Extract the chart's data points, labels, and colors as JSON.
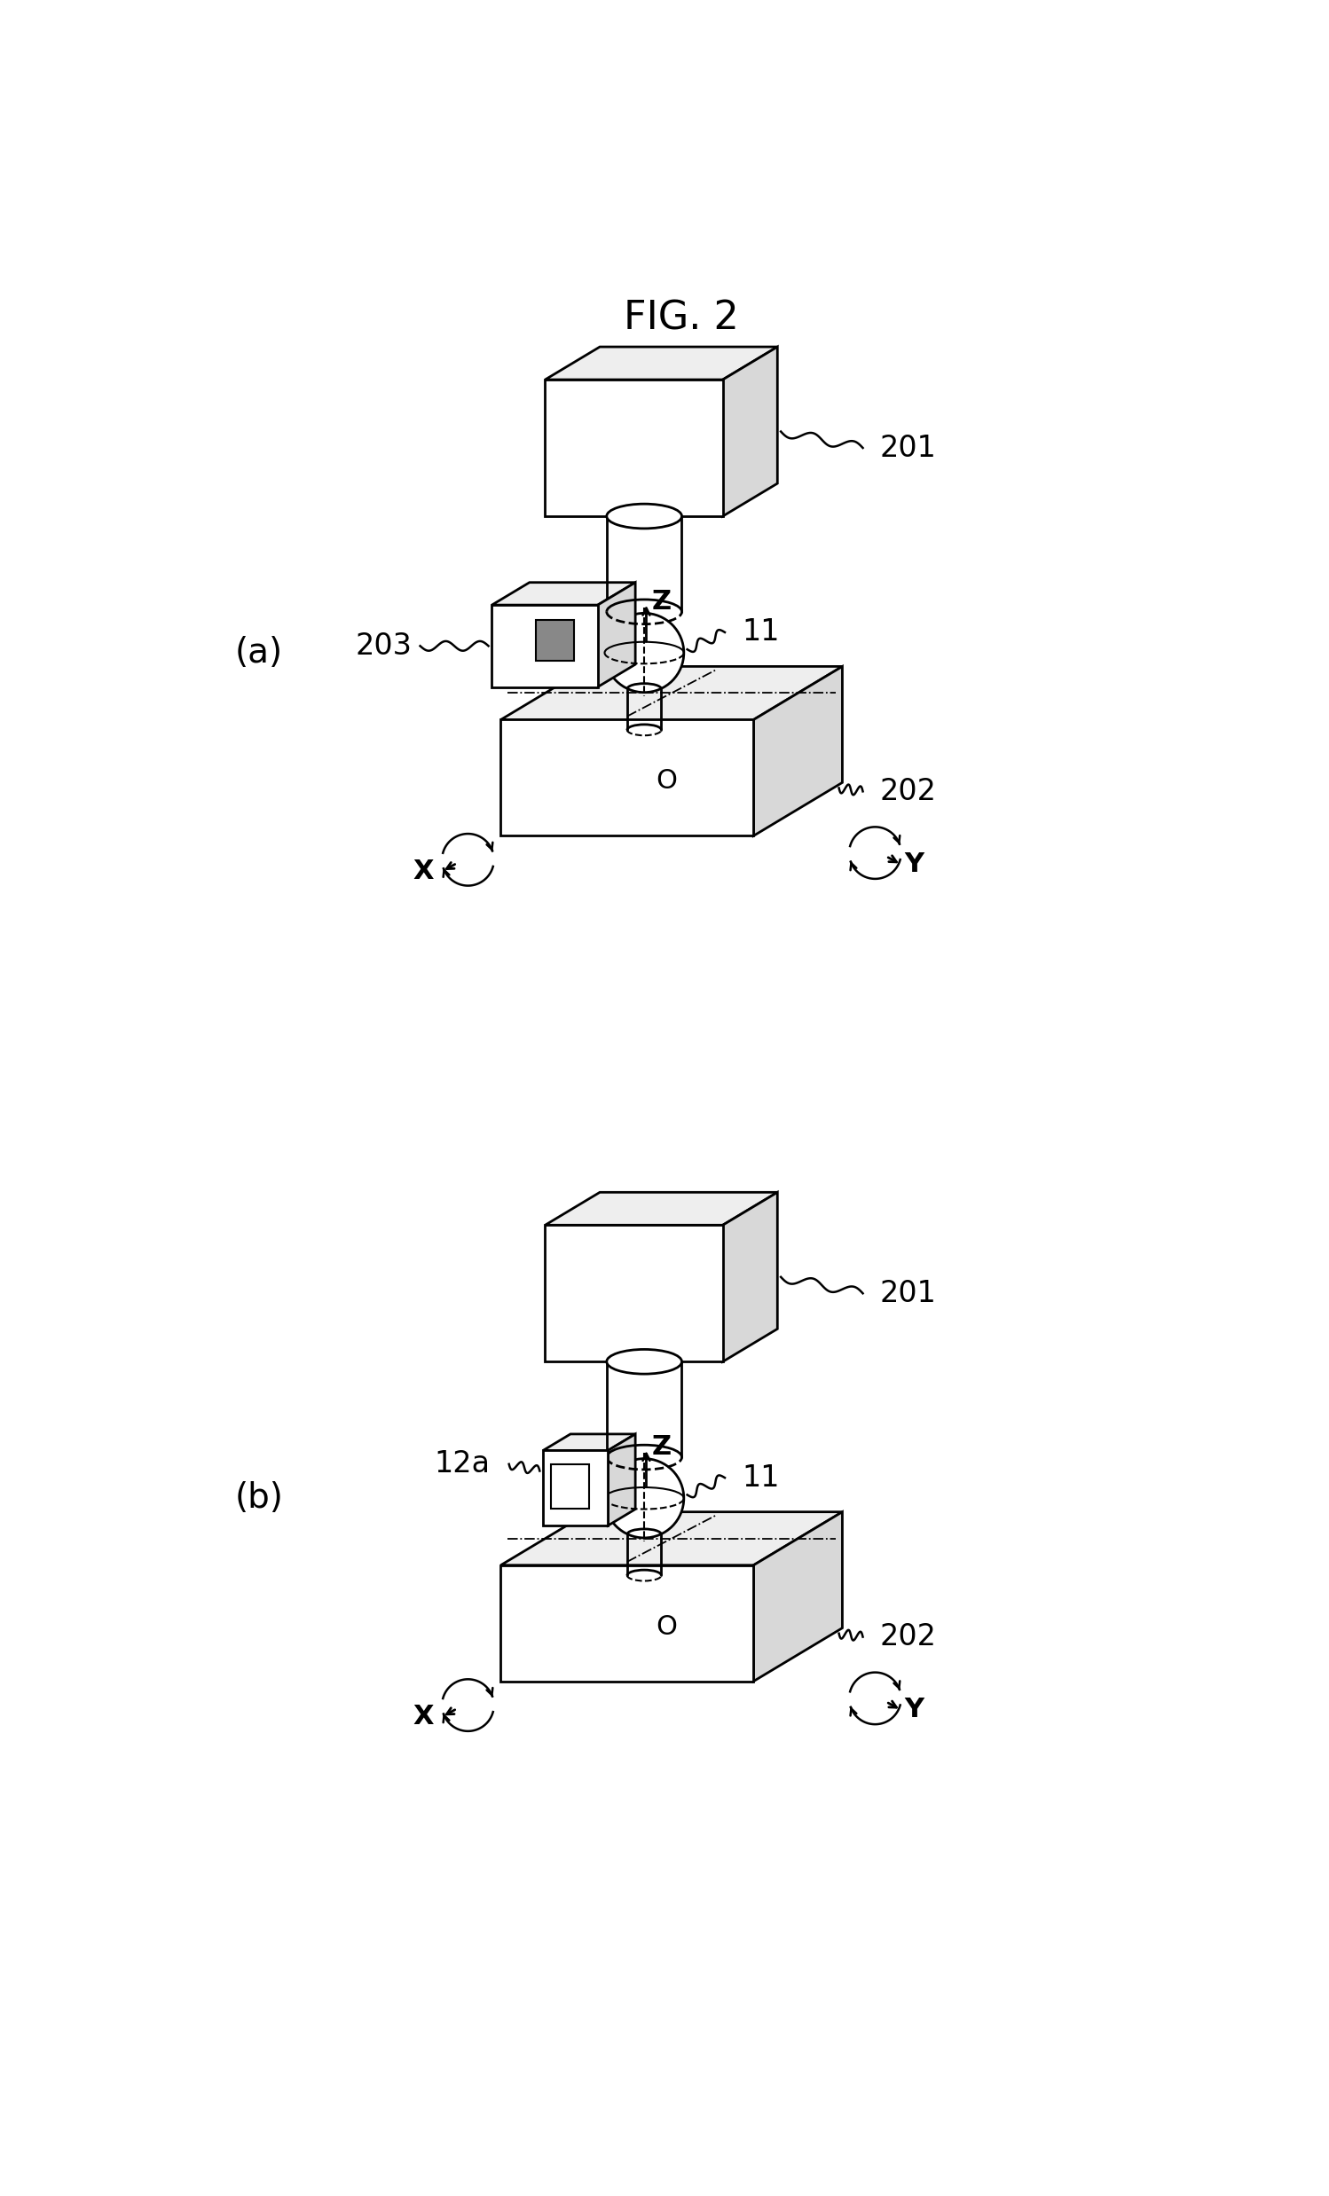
{
  "title": "FIG. 2",
  "background_color": "#ffffff",
  "label_a": "(a)",
  "label_b": "(b)",
  "ref_201": "201",
  "ref_202": "202",
  "ref_203": "203",
  "ref_11": "11",
  "ref_12a": "12a",
  "label_X": "X",
  "label_Y": "Y",
  "label_Z": "Z",
  "label_O": "O",
  "lw_main": 2.0,
  "lw_thin": 1.5,
  "fc_white": "#ffffff",
  "fc_light": "#eeeeee",
  "fc_mid": "#d8d8d8",
  "fc_dark": "#b0b0b0",
  "fc_sensor": "#888888"
}
